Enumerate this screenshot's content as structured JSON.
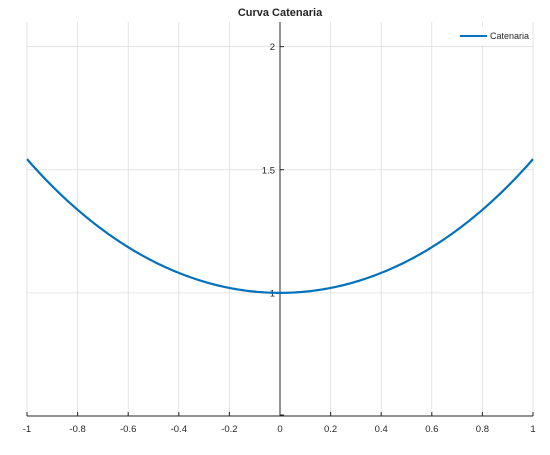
{
  "chart_data": {
    "type": "line",
    "title": "Curva Catenaria",
    "xlabel": "",
    "ylabel": "",
    "xlim": [
      -1,
      1
    ],
    "ylim": [
      0.5,
      2.1
    ],
    "grid": true,
    "axis_location": "origin",
    "legend_position": "top-right",
    "x_ticks": [
      -1,
      -0.8,
      -0.6,
      -0.4,
      -0.2,
      0,
      0.2,
      0.4,
      0.6,
      0.8,
      1
    ],
    "x_tick_labels": [
      "-1",
      "-0.8",
      "-0.6",
      "-0.4",
      "-0.2",
      "0",
      "0.2",
      "0.4",
      "0.6",
      "0.8",
      "1"
    ],
    "y_ticks": [
      1,
      1.5,
      2
    ],
    "y_tick_labels": [
      "1",
      "1.5",
      "2"
    ],
    "series": [
      {
        "name": "Catenaria",
        "color": "#0072BD",
        "x": [
          -1,
          -0.9,
          -0.8,
          -0.7,
          -0.6,
          -0.5,
          -0.4,
          -0.3,
          -0.2,
          -0.1,
          0,
          0.1,
          0.2,
          0.3,
          0.4,
          0.5,
          0.6,
          0.7,
          0.8,
          0.9,
          1
        ],
        "y": [
          1.543,
          1.433,
          1.337,
          1.255,
          1.185,
          1.128,
          1.081,
          1.045,
          1.02,
          1.005,
          1.0,
          1.005,
          1.02,
          1.045,
          1.081,
          1.128,
          1.185,
          1.255,
          1.337,
          1.433,
          1.543
        ]
      }
    ]
  },
  "colors": {
    "axis": "#262626",
    "grid": "#dcdcdc",
    "line": "#0072BD",
    "background": "#ffffff"
  }
}
